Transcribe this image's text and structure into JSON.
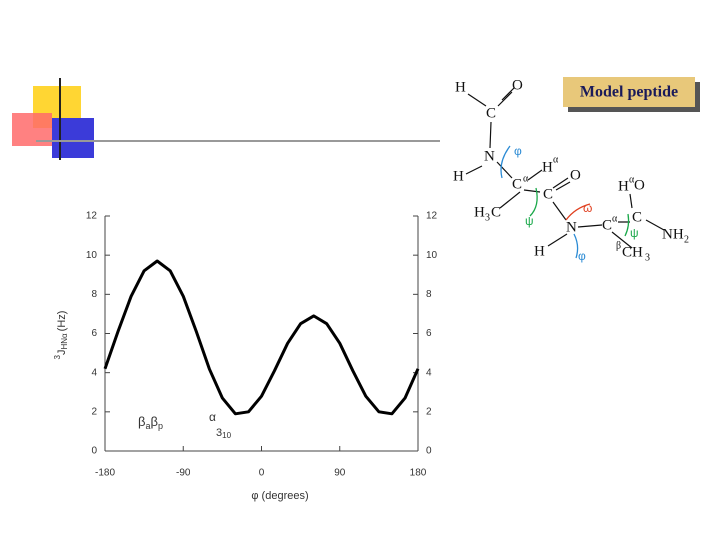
{
  "chart_data": {
    "type": "line",
    "x": [
      -180,
      -165,
      -150,
      -135,
      -120,
      -105,
      -90,
      -75,
      -60,
      -45,
      -30,
      -15,
      0,
      15,
      30,
      45,
      60,
      75,
      90,
      105,
      120,
      135,
      150,
      165,
      180
    ],
    "series": [
      {
        "color": "#000000",
        "values": [
          4.2,
          6.1,
          7.9,
          9.2,
          9.7,
          9.2,
          7.9,
          6.1,
          4.2,
          2.7,
          1.9,
          2.0,
          2.8,
          4.1,
          5.5,
          6.5,
          6.9,
          6.5,
          5.5,
          4.1,
          2.8,
          2.0,
          1.9,
          2.7,
          4.2
        ]
      }
    ],
    "xlim": [
      -180,
      180
    ],
    "xticks": [
      -180,
      -90,
      0,
      90,
      180
    ],
    "ylim": [
      0,
      12
    ],
    "yticks": [
      0,
      2,
      4,
      6,
      8,
      10,
      12
    ],
    "y2lim": [
      0,
      12
    ],
    "y2ticks": [
      0,
      2,
      4,
      6,
      8,
      10,
      12
    ],
    "xlabel": "φ (degrees)",
    "ylabel_sup": "3",
    "ylabel": "J",
    "ylabel_sub": "HNα",
    "ylabel_unit": "(Hz)",
    "beta_label": [
      "β",
      "a",
      "β",
      "p"
    ],
    "alpha_label": "α",
    "helix_label": [
      "3",
      "10"
    ]
  },
  "diagram": {
    "title": "Model peptide",
    "atoms": [
      "H",
      "O",
      "C",
      "N",
      "H",
      "H",
      "α",
      "C",
      "α",
      "O",
      "C",
      "H",
      "3",
      "C",
      "N",
      "C",
      "α",
      "H",
      "α",
      "O",
      "C",
      "NH",
      "2",
      "H",
      "β",
      "CH",
      "3"
    ],
    "angles": [
      "φ",
      "ψ",
      "ω",
      "ψ",
      "φ"
    ]
  }
}
